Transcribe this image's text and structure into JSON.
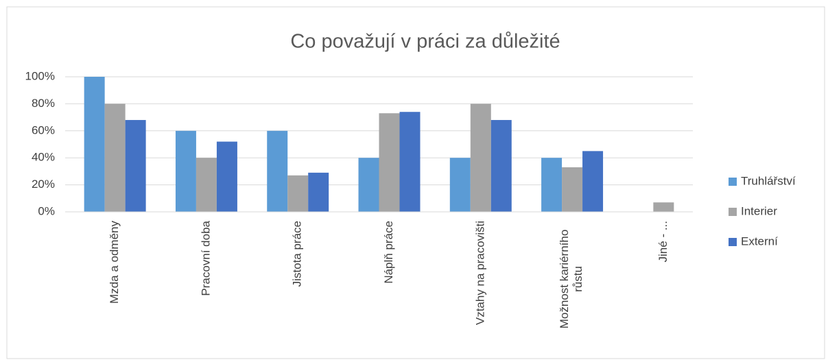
{
  "chart_data": {
    "type": "bar",
    "title": "Co považují v práci za důležité",
    "categories": [
      "Mzda a odměny",
      "Pracovní doba",
      "Jistota práce",
      "Náplň práce",
      "Vztahy na pracovišti",
      "Možnost kariérního růstu",
      "Jiné - ..."
    ],
    "series": [
      {
        "name": "Truhlářství",
        "color": "#5b9bd5",
        "values": [
          100,
          60,
          60,
          40,
          40,
          40,
          0
        ]
      },
      {
        "name": "Interier",
        "color": "#a5a5a5",
        "values": [
          80,
          40,
          27,
          73,
          80,
          33,
          7
        ]
      },
      {
        "name": "Externí",
        "color": "#4472c4",
        "values": [
          68,
          52,
          29,
          74,
          68,
          45,
          0
        ]
      }
    ],
    "ylim": [
      0,
      100
    ],
    "yticks": [
      {
        "value": 0,
        "label": "0%"
      },
      {
        "value": 20,
        "label": "20%"
      },
      {
        "value": 40,
        "label": "40%"
      },
      {
        "value": 60,
        "label": "60%"
      },
      {
        "value": 80,
        "label": "80%"
      },
      {
        "value": 100,
        "label": "100%"
      }
    ],
    "grid": true,
    "legend": "right"
  }
}
